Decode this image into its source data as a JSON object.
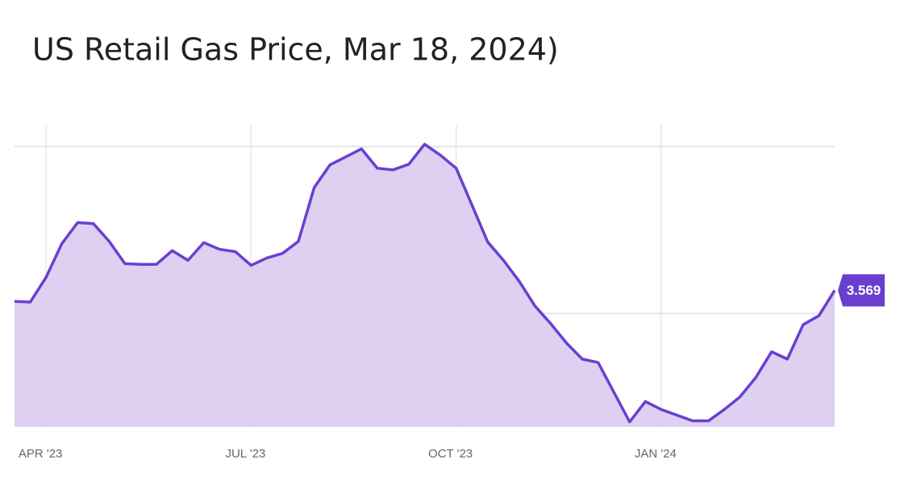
{
  "chart_data": {
    "type": "line",
    "title": "US Retail Gas Price, Mar 18, 2024)",
    "categories": [
      null,
      null,
      "APR '23",
      null,
      null,
      null,
      null,
      null,
      null,
      null,
      null,
      null,
      null,
      null,
      null,
      "JUL '23",
      null,
      null,
      null,
      null,
      null,
      null,
      null,
      null,
      null,
      null,
      null,
      null,
      "OCT '23",
      null,
      null,
      null,
      null,
      null,
      null,
      null,
      null,
      null,
      null,
      null,
      null,
      "JAN '24",
      null,
      null,
      null,
      null,
      null,
      null,
      null,
      null,
      null,
      null,
      null
    ],
    "series": [
      {
        "color": "#6a3fd0",
        "fill": "#dccdf0",
        "values": [
          3.536,
          3.534,
          3.608,
          3.709,
          3.772,
          3.769,
          3.716,
          3.649,
          3.647,
          3.647,
          3.688,
          3.659,
          3.712,
          3.692,
          3.685,
          3.644,
          3.666,
          3.68,
          3.716,
          3.877,
          3.945,
          3.969,
          3.993,
          3.935,
          3.93,
          3.947,
          4.007,
          3.974,
          3.935,
          3.825,
          3.714,
          3.659,
          3.596,
          3.522,
          3.469,
          3.411,
          3.363,
          3.353,
          3.264,
          3.175,
          3.236,
          3.212,
          3.195,
          3.178,
          3.178,
          3.212,
          3.25,
          3.308,
          3.385,
          3.363,
          3.466,
          3.493,
          3.569
        ]
      }
    ],
    "ylim": [
      3.16,
      4.065
    ],
    "yticks": [
      3.5,
      4
    ],
    "grid": true
  }
}
